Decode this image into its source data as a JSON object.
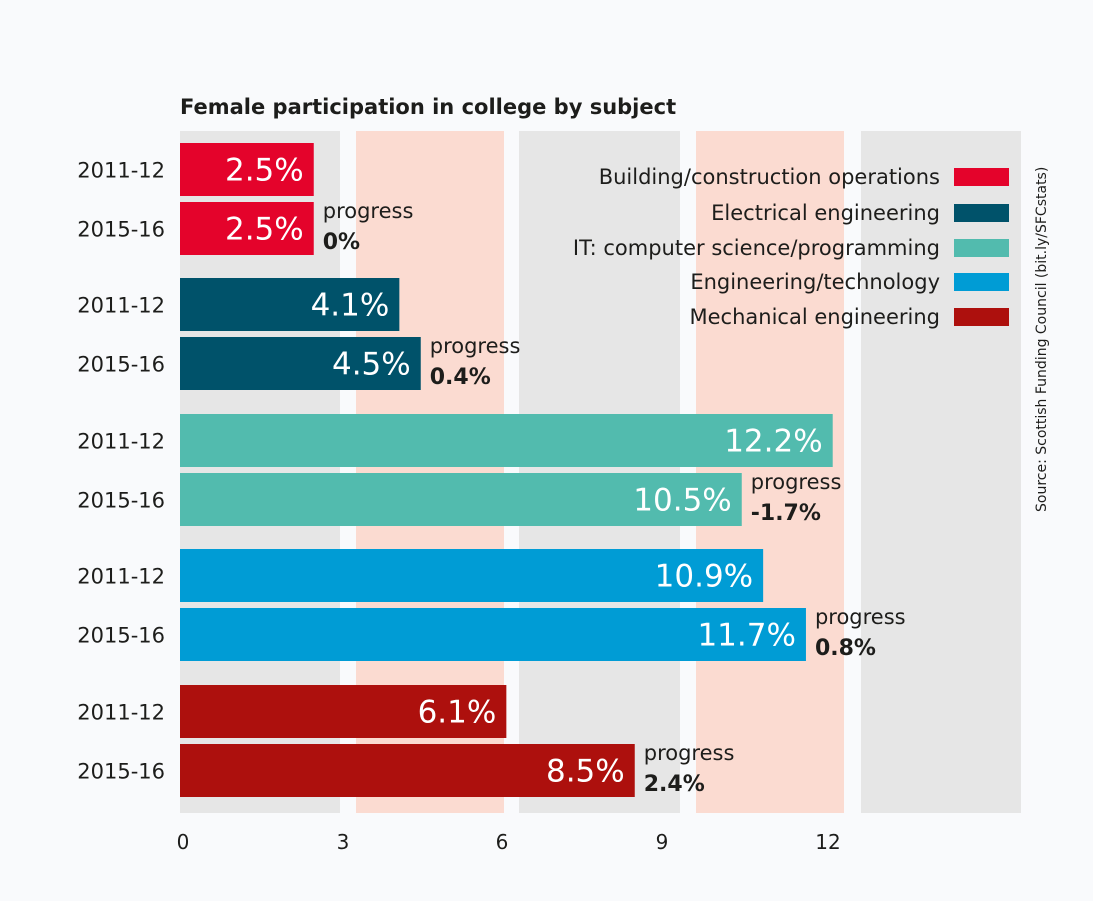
{
  "chart_data": {
    "type": "bar",
    "orientation": "horizontal",
    "title": "Female participation in college by subject",
    "xlabel": "",
    "ylabel": "",
    "xlim": [
      0,
      15
    ],
    "x_ticks": [
      0,
      3,
      6,
      9,
      12
    ],
    "x_tick_labels": [
      "0",
      "3",
      "6",
      "9",
      "12"
    ],
    "grid": "alternating vertical bands",
    "legend_position": "top-right",
    "source": "Source: Scottish Funding Council (bit.ly/SFCstats)",
    "progress_word": "progress",
    "series": [
      {
        "name": "Building/construction operations",
        "color": "#e4032b",
        "periods": [
          "2011-12",
          "2015-16"
        ],
        "values": [
          2.5,
          2.5
        ],
        "value_labels": [
          "2.5%",
          "2.5%"
        ],
        "progress": "0%"
      },
      {
        "name": "Electrical engineering",
        "color": "#00526a",
        "periods": [
          "2011-12",
          "2015-16"
        ],
        "values": [
          4.1,
          4.5
        ],
        "value_labels": [
          "4.1%",
          "4.5%"
        ],
        "progress": "0.4%"
      },
      {
        "name": "IT: computer science/programming",
        "color": "#52bbae",
        "periods": [
          "2011-12",
          "2015-16"
        ],
        "values": [
          12.2,
          10.5
        ],
        "value_labels": [
          "12.2%",
          "10.5%"
        ],
        "progress": "-1.7%"
      },
      {
        "name": "Engineering/technology",
        "color": "#009cd5",
        "periods": [
          "2011-12",
          "2015-16"
        ],
        "values": [
          10.9,
          11.7
        ],
        "value_labels": [
          "10.9%",
          "11.7%"
        ],
        "progress": "0.8%"
      },
      {
        "name": "Mechanical engineering",
        "color": "#ad100d",
        "periods": [
          "2011-12",
          "2015-16"
        ],
        "values": [
          6.1,
          8.5
        ],
        "value_labels": [
          "6.1%",
          "8.5%"
        ],
        "progress": "2.4%"
      }
    ],
    "band_colors": [
      "#e6e6e6",
      "#fbdbd1"
    ]
  }
}
